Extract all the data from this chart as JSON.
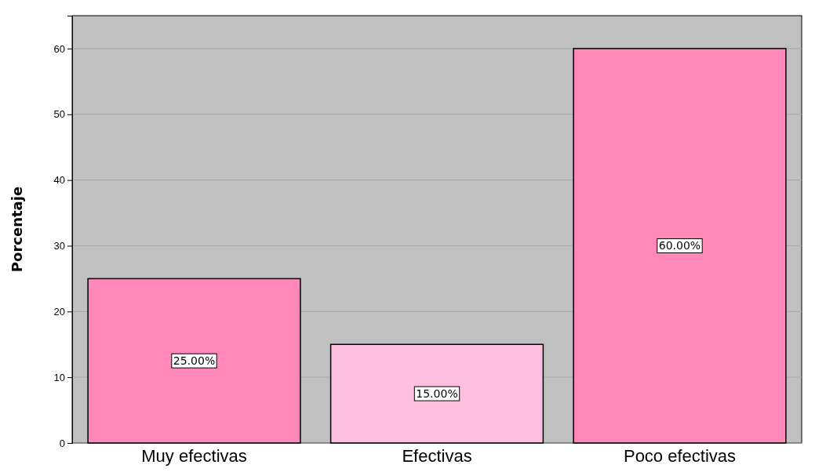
{
  "chart_data": {
    "type": "bar",
    "ylabel": "Porcentaje",
    "categories": [
      "Muy efectivas",
      "Efectivas",
      "Poco efectivas"
    ],
    "values": [
      25,
      15,
      60
    ],
    "colors": [
      "#ff88b8",
      "#ffc0e0",
      "#ff88b8"
    ],
    "value_labels": [
      "25.00%",
      "15.00%",
      "60.00%"
    ],
    "ylim": [
      0,
      65
    ],
    "yticks": [
      0,
      10,
      20,
      30,
      40,
      50,
      60
    ],
    "grid": "y"
  }
}
